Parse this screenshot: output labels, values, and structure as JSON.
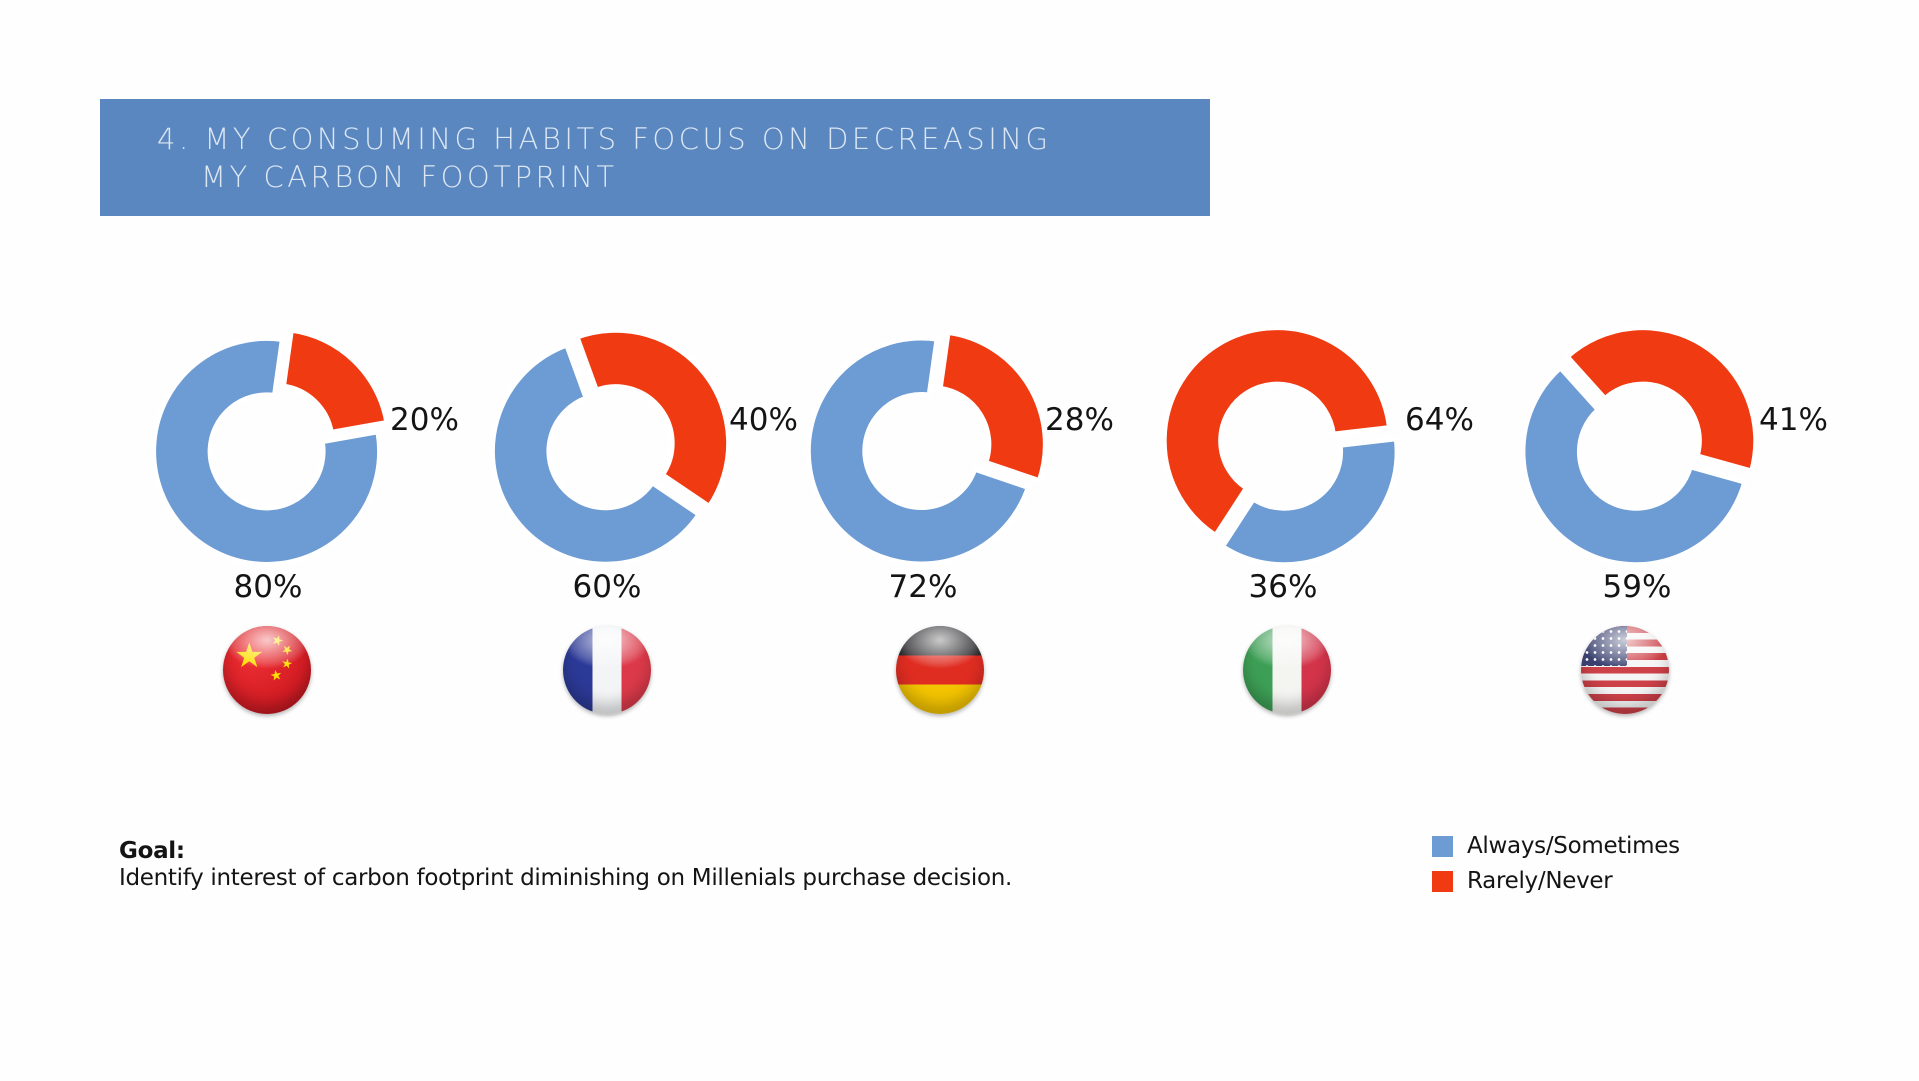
{
  "banner": {
    "title_line1": "4. MY CONSUMING HABITS FOCUS ON DECREASING",
    "title_line2": "MY CARBON FOOTPRINT",
    "bg_color": "#5b87c0",
    "text_color": "#dbe7f3"
  },
  "colors": {
    "always_sometimes_blue": "#6d9bd3",
    "rarely_never_red": "#f03a12",
    "slice_gap_white": "#ffffff"
  },
  "legend": {
    "items": [
      {
        "label": "Always/Sometimes",
        "color": "#6d9bd3"
      },
      {
        "label": "Rarely/Never",
        "color": "#f03a12"
      }
    ]
  },
  "goal": {
    "heading": "Goal:",
    "text": "Identify interest of carbon footprint diminishing on Millenials purchase decision."
  },
  "chart_data": [
    {
      "type": "pie",
      "country": "China",
      "series": [
        {
          "name": "Always/Sometimes",
          "value": 80
        },
        {
          "name": "Rarely/Never",
          "value": 20
        }
      ],
      "always_label": "80%",
      "rarely_label": "20%",
      "rotation_deg": 8,
      "exploded": "Rarely/Never",
      "donut_hole": 0.5,
      "legend_position": "bottom-right"
    },
    {
      "type": "pie",
      "country": "France",
      "series": [
        {
          "name": "Always/Sometimes",
          "value": 60
        },
        {
          "name": "Rarely/Never",
          "value": 40
        }
      ],
      "always_label": "60%",
      "rarely_label": "40%",
      "rotation_deg": -20,
      "exploded": "Rarely/Never",
      "donut_hole": 0.5,
      "legend_position": "bottom-right"
    },
    {
      "type": "pie",
      "country": "Germany",
      "series": [
        {
          "name": "Always/Sometimes",
          "value": 72
        },
        {
          "name": "Rarely/Never",
          "value": 28
        }
      ],
      "always_label": "72%",
      "rarely_label": "28%",
      "rotation_deg": 8,
      "exploded": "Rarely/Never",
      "donut_hole": 0.5,
      "legend_position": "bottom-right"
    },
    {
      "type": "pie",
      "country": "Italy",
      "series": [
        {
          "name": "Always/Sometimes",
          "value": 36
        },
        {
          "name": "Rarely/Never",
          "value": 64
        }
      ],
      "always_label": "36%",
      "rarely_label": "64%",
      "rotation_deg": 213,
      "exploded": "Rarely/Never",
      "donut_hole": 0.5,
      "legend_position": "bottom-right"
    },
    {
      "type": "pie",
      "country": "United States",
      "series": [
        {
          "name": "Always/Sometimes",
          "value": 59
        },
        {
          "name": "Rarely/Never",
          "value": 41
        }
      ],
      "always_label": "59%",
      "rarely_label": "41%",
      "rotation_deg": -42,
      "exploded": "Rarely/Never",
      "donut_hole": 0.5,
      "legend_position": "bottom-right"
    }
  ]
}
